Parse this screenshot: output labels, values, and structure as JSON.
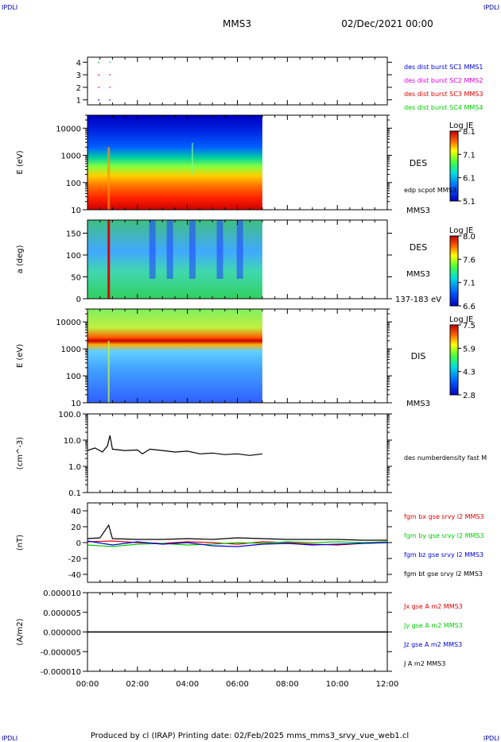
{
  "header": {
    "corner_left": "IPDLI",
    "corner_right": "IPDLI",
    "mission": "MMS3",
    "datetime": "02/Dec/2021 00:00",
    "bottom_left": "IPDLI",
    "bottom_right": "IPDLI"
  },
  "footer": {
    "text": "Produced by cl (IRAP)   Printing date: 02/Feb/2025   mms_mms3_srvy_vue_web1.cl"
  },
  "colors": {
    "blue": "#0000dd",
    "magenta": "#dd00dd",
    "red": "#dd0000",
    "green": "#00cc00",
    "black": "#000000"
  },
  "chart_data": [
    {
      "type": "scatter",
      "panel": "burst-availability",
      "ylabel": "",
      "yticks": [
        "1",
        "2",
        "3",
        "4"
      ],
      "ylim": [
        0.6,
        4.4
      ],
      "legend": [
        {
          "name": "des dist burst SC1 MMS1",
          "color": "#0000dd"
        },
        {
          "name": "des dist burst SC2 MMS2",
          "color": "#dd00dd"
        },
        {
          "name": "des dist burst SC3 MMS3",
          "color": "#dd0000"
        },
        {
          "name": "des dist burst SC4 MMS4",
          "color": "#00cc00"
        }
      ],
      "segments": [
        {
          "y": 4,
          "x": [
            0.43,
            0.47
          ],
          "color": "#00cc00"
        },
        {
          "y": 3,
          "x": [
            0.43,
            0.47
          ],
          "color": "#dd0000"
        },
        {
          "y": 2,
          "x": [
            0.43,
            0.47
          ],
          "color": "#dd00dd"
        },
        {
          "y": 1,
          "x": [
            0.43,
            0.47
          ],
          "color": "#0000dd"
        }
      ]
    },
    {
      "type": "heatmap",
      "panel": "des-energy-spectrogram",
      "ylabel": "E (eV)",
      "yticks": [
        "10",
        "100",
        "1000",
        "10000"
      ],
      "yscale": "log",
      "ylim": [
        10,
        30000
      ],
      "data_end_hour": 7.0,
      "side_labels": [
        "DES",
        "edp scpot MMS3",
        "MMS3"
      ],
      "colorbar": {
        "title": "Log JE",
        "max": "8.1",
        "t2": "7.1",
        "t3": "6.1",
        "min": "5.1"
      }
    },
    {
      "type": "heatmap",
      "panel": "des-pitch-angle",
      "ylabel": "a (deg)",
      "yticks": [
        "0",
        "50",
        "100",
        "150"
      ],
      "ylim": [
        0,
        180
      ],
      "data_end_hour": 7.0,
      "side_labels": [
        "DES",
        "MMS3",
        "137-183 eV"
      ],
      "colorbar": {
        "title": "Log JE",
        "max": "8.0",
        "t2": "7.6",
        "t3": "7.1",
        "min": "6.6"
      }
    },
    {
      "type": "heatmap",
      "panel": "dis-energy-spectrogram",
      "ylabel": "E (eV)",
      "yticks": [
        "10",
        "100",
        "1000",
        "10000"
      ],
      "yscale": "log",
      "ylim": [
        10,
        30000
      ],
      "data_end_hour": 7.0,
      "side_labels": [
        "DIS",
        "MMS3"
      ],
      "colorbar": {
        "title": "Log JE",
        "max": "7.5",
        "t2": "5.9",
        "t3": "4.3",
        "min": "2.8"
      }
    },
    {
      "type": "line",
      "panel": "number-density",
      "ylabel": "(cm^-3)",
      "yticks": [
        "0.1",
        "1.0",
        "10.0",
        "100.0"
      ],
      "yscale": "log",
      "ylim": [
        0.1,
        100
      ],
      "series": [
        {
          "name": "des numberdensity fast M",
          "color": "#000000",
          "x": [
            0.0,
            0.3,
            0.6,
            0.8,
            0.9,
            1.0,
            1.5,
            2.0,
            2.2,
            2.5,
            3.0,
            3.5,
            4.0,
            4.5,
            5.0,
            5.5,
            6.0,
            6.5,
            7.0
          ],
          "y": [
            4.0,
            5.0,
            3.5,
            6.0,
            15.0,
            4.5,
            4.0,
            4.2,
            3.0,
            4.5,
            4.0,
            3.5,
            3.8,
            3.0,
            3.2,
            2.8,
            3.0,
            2.6,
            3.0
          ]
        }
      ]
    },
    {
      "type": "line",
      "panel": "magnetic-field",
      "ylabel": "(nT)",
      "yticks": [
        "-40",
        "-20",
        "0",
        "20",
        "40"
      ],
      "ylim": [
        -50,
        50
      ],
      "series": [
        {
          "name": "fgm bx gse srvy l2 MMS3",
          "color": "#dd0000",
          "x": [
            0,
            1,
            2,
            3,
            4,
            5,
            6,
            7,
            8,
            9,
            10,
            11,
            12
          ],
          "y": [
            1,
            2,
            0,
            -1,
            1,
            0,
            -2,
            1,
            0,
            -2,
            -3,
            -1,
            0
          ]
        },
        {
          "name": "fgm by gse srvy l2 MMS3",
          "color": "#00cc00",
          "x": [
            0,
            1,
            2,
            3,
            4,
            5,
            6,
            7,
            8,
            9,
            10,
            11,
            12
          ],
          "y": [
            -3,
            -5,
            -2,
            -1,
            -3,
            -2,
            0,
            -1,
            1,
            0,
            1,
            0,
            1
          ]
        },
        {
          "name": "fgm bz gse srvy l2 MMS3",
          "color": "#0000dd",
          "x": [
            0,
            1,
            2,
            3,
            4,
            5,
            6,
            7,
            8,
            9,
            10,
            11,
            12
          ],
          "y": [
            2,
            -3,
            1,
            -2,
            0,
            -4,
            -5,
            -2,
            -1,
            -3,
            -2,
            -1,
            0
          ]
        },
        {
          "name": "fgm bt gse srvy l2 MMS3",
          "color": "#000000",
          "x": [
            0,
            0.5,
            0.85,
            1,
            2,
            3,
            4,
            5,
            6,
            7,
            8,
            9,
            10,
            11,
            12
          ],
          "y": [
            5,
            6,
            22,
            5,
            4,
            4,
            5,
            4,
            6,
            5,
            4,
            4,
            4,
            3,
            3
          ]
        }
      ]
    },
    {
      "type": "line",
      "panel": "current-density",
      "ylabel": "(A/m2)",
      "yticks": [
        "-0.000010",
        "-0.000005",
        "0.000000",
        "0.000005",
        "0.000010"
      ],
      "ylim": [
        -1e-05,
        1e-05
      ],
      "series": [
        {
          "name": "Jx gse A m2 MMS3",
          "color": "#dd0000",
          "x": [
            0,
            12
          ],
          "y": [
            0,
            0
          ]
        },
        {
          "name": "Jy gse A m2 MMS3",
          "color": "#00cc00",
          "x": [
            0,
            12
          ],
          "y": [
            0,
            0
          ]
        },
        {
          "name": "Jz gse A m2 MMS3",
          "color": "#0000dd",
          "x": [
            0,
            12
          ],
          "y": [
            0,
            0
          ]
        },
        {
          "name": "J A m2 MMS3",
          "color": "#000000",
          "x": [
            0,
            12
          ],
          "y": [
            0,
            0
          ]
        }
      ]
    }
  ],
  "xaxis": {
    "ticks": [
      "00:00",
      "02:00",
      "04:00",
      "06:00",
      "08:00",
      "10:00",
      "12:00"
    ],
    "xlim": [
      0,
      12
    ]
  }
}
